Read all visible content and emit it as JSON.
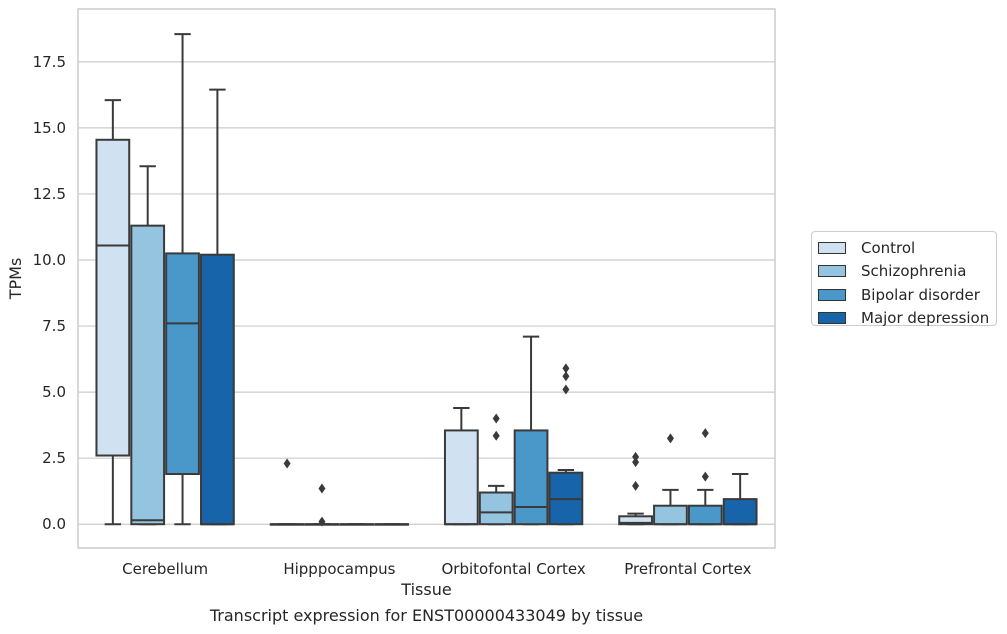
{
  "caption": "Transcript expression for ENST00000433049 by tissue",
  "chart_data": {
    "type": "boxplot",
    "title": "",
    "xlabel": "Tissue",
    "ylabel": "TPMs",
    "ylim": [
      -0.9,
      19.5
    ],
    "yticks": [
      0.0,
      2.5,
      5.0,
      7.5,
      10.0,
      12.5,
      15.0,
      17.5
    ],
    "ytick_labels": [
      "0.0",
      "2.5",
      "5.0",
      "7.5",
      "10.0",
      "12.5",
      "15.0",
      "17.5"
    ],
    "grid": "horizontal",
    "legend_position": "right",
    "categories": [
      "Cerebellum",
      "Hipppocampus",
      "Orbitofontal Cortex",
      "Prefrontal Cortex"
    ],
    "series": [
      {
        "name": "Control",
        "color": "#d0e1f2",
        "boxes": [
          {
            "whislo": 0.0,
            "q1": 2.6,
            "med": 10.55,
            "q3": 14.55,
            "whishi": 16.05,
            "fliers": []
          },
          {
            "whislo": 0.0,
            "q1": 0.0,
            "med": 0.0,
            "q3": 0.0,
            "whishi": 0.0,
            "fliers": [
              2.3
            ]
          },
          {
            "whislo": 0.0,
            "q1": 0.0,
            "med": 0.0,
            "q3": 3.55,
            "whishi": 4.4,
            "fliers": []
          },
          {
            "whislo": 0.0,
            "q1": 0.0,
            "med": 0.05,
            "q3": 0.3,
            "whishi": 0.4,
            "fliers": [
              1.45,
              2.35,
              2.55
            ]
          }
        ]
      },
      {
        "name": "Schizophrenia",
        "color": "#94c4df",
        "boxes": [
          {
            "whislo": 0.0,
            "q1": 0.0,
            "med": 0.15,
            "q3": 11.3,
            "whishi": 13.55,
            "fliers": []
          },
          {
            "whislo": 0.0,
            "q1": 0.0,
            "med": 0.0,
            "q3": 0.0,
            "whishi": 0.0,
            "fliers": [
              0.1,
              1.35
            ]
          },
          {
            "whislo": 0.0,
            "q1": 0.0,
            "med": 0.45,
            "q3": 1.2,
            "whishi": 1.45,
            "fliers": [
              3.35,
              4.0
            ]
          },
          {
            "whislo": 0.0,
            "q1": 0.0,
            "med": 0.0,
            "q3": 0.7,
            "whishi": 1.3,
            "fliers": [
              3.25
            ]
          }
        ]
      },
      {
        "name": "Bipolar disorder",
        "color": "#4a98c9",
        "boxes": [
          {
            "whislo": 0.0,
            "q1": 1.9,
            "med": 7.6,
            "q3": 10.25,
            "whishi": 18.55,
            "fliers": []
          },
          {
            "whislo": 0.0,
            "q1": 0.0,
            "med": 0.0,
            "q3": 0.0,
            "whishi": 0.0,
            "fliers": []
          },
          {
            "whislo": 0.0,
            "q1": 0.0,
            "med": 0.65,
            "q3": 3.55,
            "whishi": 7.1,
            "fliers": []
          },
          {
            "whislo": 0.0,
            "q1": 0.0,
            "med": 0.0,
            "q3": 0.7,
            "whishi": 1.3,
            "fliers": [
              1.8,
              3.45
            ]
          }
        ]
      },
      {
        "name": "Major depression",
        "color": "#1764ab",
        "boxes": [
          {
            "whislo": 0.0,
            "q1": 0.0,
            "med": 0.0,
            "q3": 10.2,
            "whishi": 16.45,
            "fliers": []
          },
          {
            "whislo": 0.0,
            "q1": 0.0,
            "med": 0.0,
            "q3": 0.0,
            "whishi": 0.0,
            "fliers": []
          },
          {
            "whislo": 0.0,
            "q1": 0.0,
            "med": 0.95,
            "q3": 1.95,
            "whishi": 2.05,
            "fliers": [
              5.1,
              5.6,
              5.9
            ]
          },
          {
            "whislo": 0.0,
            "q1": 0.0,
            "med": 0.0,
            "q3": 0.95,
            "whishi": 1.9,
            "fliers": []
          }
        ]
      }
    ]
  }
}
